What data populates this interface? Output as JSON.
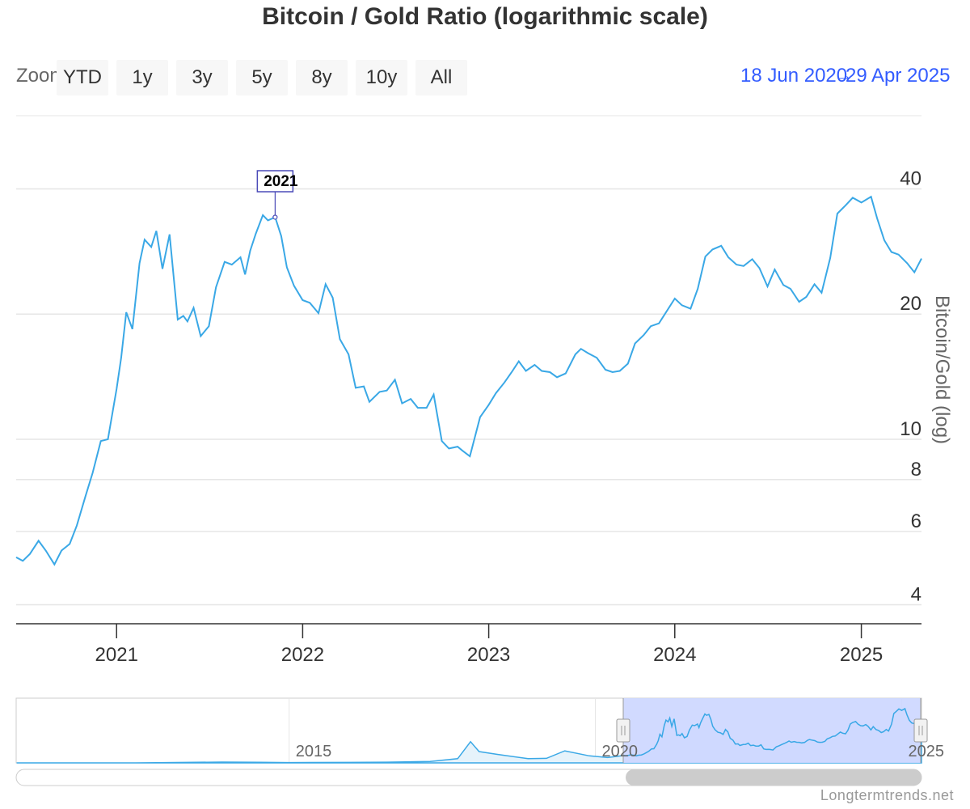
{
  "title": "Bitcoin / Gold Ratio (logarithmic scale)",
  "zoom": {
    "label": "Zoom",
    "buttons": [
      "YTD",
      "1y",
      "3y",
      "5y",
      "8y",
      "10y",
      "All"
    ]
  },
  "range": {
    "from": "18 Jun 2020",
    "separator": "→",
    "to": "29 Apr 2025"
  },
  "credits": "Longtermtrends.net",
  "colors": {
    "series": "#3aa8e6",
    "navigator_mask": "#ccd6ff",
    "flag_border": "#4a4ab8",
    "range_text": "#335cff"
  },
  "chart_data": {
    "type": "line",
    "title": "Bitcoin / Gold Ratio (logarithmic scale)",
    "ylabel": "Bitcoin/Gold (log)",
    "yscale": "log",
    "ylim": [
      3.6,
      60
    ],
    "xlim": [
      "2020-06-18",
      "2025-04-29"
    ],
    "y_ticks": [
      4,
      6,
      8,
      10,
      20,
      40
    ],
    "x_ticks": [
      "2021",
      "2022",
      "2023",
      "2024",
      "2025"
    ],
    "grid": true,
    "flag": {
      "label": "2021",
      "date": "2021-11-08",
      "value": 34.2
    },
    "series": [
      {
        "x": [
          "2020-06-18",
          "2020-07-01",
          "2020-07-15",
          "2020-08-01",
          "2020-08-15",
          "2020-09-01",
          "2020-09-15",
          "2020-10-01",
          "2020-10-15",
          "2020-11-01",
          "2020-11-15",
          "2020-12-01",
          "2020-12-15",
          "2021-01-01",
          "2021-01-10",
          "2021-01-20",
          "2021-02-01",
          "2021-02-15",
          "2021-02-25",
          "2021-03-10",
          "2021-03-20",
          "2021-04-01",
          "2021-04-15",
          "2021-05-01",
          "2021-05-12",
          "2021-05-20",
          "2021-06-01",
          "2021-06-15",
          "2021-07-01",
          "2021-07-15",
          "2021-08-01",
          "2021-08-15",
          "2021-09-01",
          "2021-09-10",
          "2021-09-20",
          "2021-10-01",
          "2021-10-15",
          "2021-10-25",
          "2021-11-08",
          "2021-11-20",
          "2021-12-01",
          "2021-12-15",
          "2022-01-01",
          "2022-01-15",
          "2022-02-01",
          "2022-02-15",
          "2022-03-01",
          "2022-03-15",
          "2022-04-01",
          "2022-04-15",
          "2022-05-01",
          "2022-05-12",
          "2022-06-01",
          "2022-06-15",
          "2022-07-01",
          "2022-07-15",
          "2022-08-01",
          "2022-08-15",
          "2022-09-01",
          "2022-09-15",
          "2022-10-01",
          "2022-10-15",
          "2022-11-01",
          "2022-11-10",
          "2022-11-25",
          "2022-12-15",
          "2023-01-01",
          "2023-01-15",
          "2023-02-01",
          "2023-02-15",
          "2023-03-01",
          "2023-03-15",
          "2023-04-01",
          "2023-04-15",
          "2023-05-01",
          "2023-05-15",
          "2023-06-01",
          "2023-06-20",
          "2023-07-01",
          "2023-07-15",
          "2023-08-01",
          "2023-08-18",
          "2023-09-01",
          "2023-09-15",
          "2023-10-01",
          "2023-10-15",
          "2023-11-01",
          "2023-11-15",
          "2023-12-01",
          "2024-01-01",
          "2024-01-15",
          "2024-02-01",
          "2024-02-15",
          "2024-03-01",
          "2024-03-15",
          "2024-04-01",
          "2024-04-15",
          "2024-05-01",
          "2024-05-15",
          "2024-06-01",
          "2024-06-15",
          "2024-07-01",
          "2024-07-15",
          "2024-08-01",
          "2024-08-15",
          "2024-09-01",
          "2024-09-15",
          "2024-10-01",
          "2024-10-15",
          "2024-11-01",
          "2024-11-15",
          "2024-12-01",
          "2024-12-15",
          "2025-01-01",
          "2025-01-20",
          "2025-02-01",
          "2025-02-15",
          "2025-03-01",
          "2025-03-15",
          "2025-04-01",
          "2025-04-15",
          "2025-04-29"
        ],
        "values": [
          5.2,
          5.1,
          5.3,
          5.7,
          5.4,
          5.0,
          5.4,
          5.6,
          6.2,
          7.3,
          8.3,
          9.9,
          10.0,
          13.2,
          15.7,
          20.2,
          18.4,
          26.5,
          30.2,
          29.0,
          31.7,
          25.7,
          31.1,
          19.4,
          19.8,
          19.2,
          20.7,
          17.7,
          18.7,
          23.2,
          26.7,
          26.3,
          27.4,
          24.9,
          28.4,
          31.2,
          34.6,
          33.6,
          34.2,
          30.8,
          25.9,
          23.4,
          21.6,
          21.3,
          20.1,
          23.6,
          21.9,
          17.4,
          16.0,
          13.3,
          13.4,
          12.3,
          13.0,
          13.1,
          13.9,
          12.2,
          12.5,
          11.9,
          11.9,
          12.8,
          9.9,
          9.5,
          9.6,
          9.4,
          9.1,
          11.3,
          12.1,
          12.9,
          13.7,
          14.5,
          15.4,
          14.6,
          15.1,
          14.6,
          14.5,
          14.1,
          14.4,
          16.0,
          16.5,
          16.1,
          15.7,
          14.7,
          14.5,
          14.6,
          15.2,
          17.0,
          17.8,
          18.7,
          19.0,
          21.8,
          21.0,
          20.6,
          23.0,
          27.5,
          28.6,
          29.2,
          27.4,
          26.3,
          26.1,
          27.1,
          25.8,
          23.3,
          25.6,
          23.5,
          23.0,
          21.4,
          22.0,
          23.6,
          22.5,
          27.3,
          34.9,
          36.5,
          38.1,
          37.1,
          38.3,
          34.0,
          30.1,
          28.2,
          27.8,
          26.5,
          25.2,
          27.2
        ]
      }
    ],
    "navigator": {
      "x_ticks": [
        "2015",
        "2020",
        "2025"
      ],
      "selected_range": [
        "2020-06-18",
        "2025-04-29"
      ]
    }
  }
}
